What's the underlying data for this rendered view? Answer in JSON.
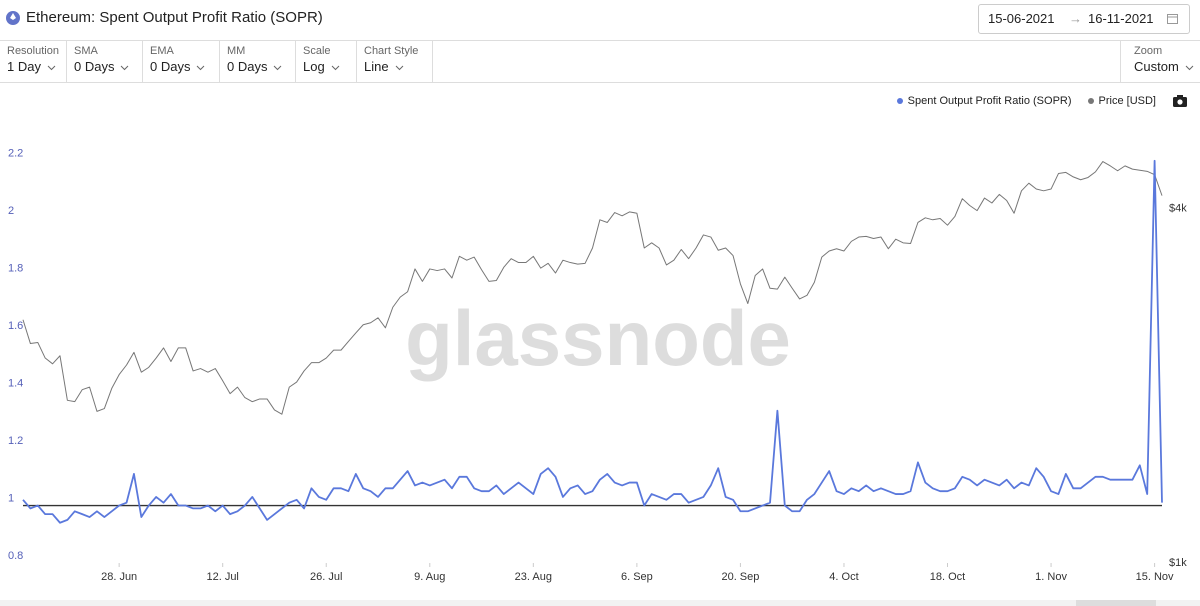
{
  "header": {
    "title": "Ethereum: Spent Output Profit Ratio (SOPR)",
    "date_from": "15-06-2021",
    "date_to": "16-11-2021"
  },
  "controls": [
    {
      "label": "Resolution",
      "value": "1 Day"
    },
    {
      "label": "SMA",
      "value": "0 Days"
    },
    {
      "label": "EMA",
      "value": "0 Days"
    },
    {
      "label": "MM",
      "value": "0 Days"
    },
    {
      "label": "Scale",
      "value": "Log"
    },
    {
      "label": "Chart Style",
      "value": "Line"
    },
    {
      "label": "Zoom",
      "value": "Custom"
    }
  ],
  "watermark": "glassnode",
  "chart_data": {
    "type": "line",
    "x": [
      "2021-06-15",
      "2021-06-16",
      "2021-06-17",
      "2021-06-18",
      "2021-06-19",
      "2021-06-20",
      "2021-06-21",
      "2021-06-22",
      "2021-06-23",
      "2021-06-24",
      "2021-06-25",
      "2021-06-26",
      "2021-06-27",
      "2021-06-28",
      "2021-06-29",
      "2021-06-30",
      "2021-07-01",
      "2021-07-02",
      "2021-07-03",
      "2021-07-04",
      "2021-07-05",
      "2021-07-06",
      "2021-07-07",
      "2021-07-08",
      "2021-07-09",
      "2021-07-10",
      "2021-07-11",
      "2021-07-12",
      "2021-07-13",
      "2021-07-14",
      "2021-07-15",
      "2021-07-16",
      "2021-07-17",
      "2021-07-18",
      "2021-07-19",
      "2021-07-20",
      "2021-07-21",
      "2021-07-22",
      "2021-07-23",
      "2021-07-24",
      "2021-07-25",
      "2021-07-26",
      "2021-07-27",
      "2021-07-28",
      "2021-07-29",
      "2021-07-30",
      "2021-07-31",
      "2021-08-01",
      "2021-08-02",
      "2021-08-03",
      "2021-08-04",
      "2021-08-05",
      "2021-08-06",
      "2021-08-07",
      "2021-08-08",
      "2021-08-09",
      "2021-08-10",
      "2021-08-11",
      "2021-08-12",
      "2021-08-13",
      "2021-08-14",
      "2021-08-15",
      "2021-08-16",
      "2021-08-17",
      "2021-08-18",
      "2021-08-19",
      "2021-08-20",
      "2021-08-21",
      "2021-08-22",
      "2021-08-23",
      "2021-08-24",
      "2021-08-25",
      "2021-08-26",
      "2021-08-27",
      "2021-08-28",
      "2021-08-29",
      "2021-08-30",
      "2021-08-31",
      "2021-09-01",
      "2021-09-02",
      "2021-09-03",
      "2021-09-04",
      "2021-09-05",
      "2021-09-06",
      "2021-09-07",
      "2021-09-08",
      "2021-09-09",
      "2021-09-10",
      "2021-09-11",
      "2021-09-12",
      "2021-09-13",
      "2021-09-14",
      "2021-09-15",
      "2021-09-16",
      "2021-09-17",
      "2021-09-18",
      "2021-09-19",
      "2021-09-20",
      "2021-09-21",
      "2021-09-22",
      "2021-09-23",
      "2021-09-24",
      "2021-09-25",
      "2021-09-26",
      "2021-09-27",
      "2021-09-28",
      "2021-09-29",
      "2021-09-30",
      "2021-10-01",
      "2021-10-02",
      "2021-10-03",
      "2021-10-04",
      "2021-10-05",
      "2021-10-06",
      "2021-10-07",
      "2021-10-08",
      "2021-10-09",
      "2021-10-10",
      "2021-10-11",
      "2021-10-12",
      "2021-10-13",
      "2021-10-14",
      "2021-10-15",
      "2021-10-16",
      "2021-10-17",
      "2021-10-18",
      "2021-10-19",
      "2021-10-20",
      "2021-10-21",
      "2021-10-22",
      "2021-10-23",
      "2021-10-24",
      "2021-10-25",
      "2021-10-26",
      "2021-10-27",
      "2021-10-28",
      "2021-10-29",
      "2021-10-30",
      "2021-10-31",
      "2021-11-01",
      "2021-11-02",
      "2021-11-03",
      "2021-11-04",
      "2021-11-05",
      "2021-11-06",
      "2021-11-07",
      "2021-11-08",
      "2021-11-09",
      "2021-11-10",
      "2021-11-11",
      "2021-11-12",
      "2021-11-13",
      "2021-11-14",
      "2021-11-15",
      "2021-11-16"
    ],
    "xlim": [
      "2021-06-15",
      "2021-11-16"
    ],
    "xticks": [
      {
        "value": "2021-06-28",
        "label": "28. Jun"
      },
      {
        "value": "2021-07-12",
        "label": "12. Jul"
      },
      {
        "value": "2021-07-26",
        "label": "26. Jul"
      },
      {
        "value": "2021-08-09",
        "label": "9. Aug"
      },
      {
        "value": "2021-08-23",
        "label": "23. Aug"
      },
      {
        "value": "2021-09-06",
        "label": "6. Sep"
      },
      {
        "value": "2021-09-20",
        "label": "20. Sep"
      },
      {
        "value": "2021-10-04",
        "label": "4. Oct"
      },
      {
        "value": "2021-10-18",
        "label": "18. Oct"
      },
      {
        "value": "2021-11-01",
        "label": "1. Nov"
      },
      {
        "value": "2021-11-15",
        "label": "15. Nov"
      }
    ],
    "ylim": [
      0.8,
      2.3
    ],
    "yticks": [
      0.8,
      1,
      1.2,
      1.4,
      1.6,
      1.8,
      2,
      2.2
    ],
    "y2lim": [
      1000,
      5400
    ],
    "y2log": true,
    "y2ticks": [
      {
        "value": 1000,
        "label": "$1k"
      },
      {
        "value": 4000,
        "label": "$4k"
      }
    ],
    "grid": false,
    "reference_line": 1,
    "legend": "top-right",
    "series": [
      {
        "name": "Spent Output Profit Ratio (SOPR)",
        "color": "#5a78dc",
        "values": [
          1.02,
          0.99,
          1.0,
          0.97,
          0.97,
          0.94,
          0.95,
          0.98,
          0.97,
          0.96,
          0.98,
          0.96,
          0.98,
          1.0,
          1.01,
          1.11,
          0.96,
          1.0,
          1.03,
          1.01,
          1.04,
          1.0,
          1.0,
          0.99,
          0.99,
          1.0,
          0.98,
          1.0,
          0.97,
          0.98,
          1.0,
          1.03,
          0.99,
          0.95,
          0.97,
          0.99,
          1.01,
          1.02,
          0.99,
          1.06,
          1.03,
          1.02,
          1.06,
          1.06,
          1.05,
          1.11,
          1.06,
          1.05,
          1.03,
          1.06,
          1.06,
          1.09,
          1.12,
          1.07,
          1.08,
          1.07,
          1.08,
          1.09,
          1.06,
          1.1,
          1.1,
          1.06,
          1.05,
          1.05,
          1.07,
          1.04,
          1.06,
          1.08,
          1.06,
          1.04,
          1.11,
          1.13,
          1.1,
          1.03,
          1.06,
          1.07,
          1.04,
          1.05,
          1.09,
          1.11,
          1.08,
          1.07,
          1.08,
          1.08,
          1.0,
          1.04,
          1.03,
          1.02,
          1.04,
          1.04,
          1.01,
          1.02,
          1.03,
          1.07,
          1.13,
          1.03,
          1.02,
          0.98,
          0.98,
          0.99,
          1.0,
          1.01,
          1.33,
          1.0,
          0.98,
          0.98,
          1.02,
          1.04,
          1.08,
          1.12,
          1.05,
          1.04,
          1.06,
          1.05,
          1.07,
          1.05,
          1.06,
          1.05,
          1.04,
          1.04,
          1.05,
          1.15,
          1.08,
          1.06,
          1.05,
          1.05,
          1.06,
          1.1,
          1.09,
          1.07,
          1.09,
          1.08,
          1.07,
          1.09,
          1.06,
          1.08,
          1.07,
          1.13,
          1.1,
          1.05,
          1.04,
          1.11,
          1.06,
          1.06,
          1.08,
          1.1,
          1.1,
          1.09,
          1.09,
          1.09,
          1.09,
          1.14,
          1.04,
          2.2,
          1.01
        ]
      },
      {
        "name": "Price [USD]",
        "color": "#777777",
        "axis": "y2",
        "values": [
          2590,
          2360,
          2370,
          2230,
          2180,
          2250,
          1890,
          1880,
          1970,
          1990,
          1810,
          1830,
          1980,
          2090,
          2170,
          2280,
          2110,
          2150,
          2230,
          2320,
          2200,
          2320,
          2320,
          2120,
          2140,
          2110,
          2140,
          2040,
          1940,
          1990,
          1910,
          1880,
          1900,
          1900,
          1820,
          1790,
          1990,
          2030,
          2120,
          2190,
          2190,
          2230,
          2300,
          2300,
          2380,
          2460,
          2540,
          2560,
          2610,
          2510,
          2720,
          2830,
          2890,
          3160,
          3010,
          3160,
          3140,
          3160,
          3050,
          3320,
          3270,
          3310,
          3150,
          3010,
          3020,
          3180,
          3290,
          3240,
          3240,
          3320,
          3170,
          3230,
          3110,
          3270,
          3240,
          3220,
          3230,
          3430,
          3830,
          3790,
          3940,
          3890,
          3950,
          3930,
          3430,
          3500,
          3430,
          3210,
          3270,
          3410,
          3290,
          3430,
          3610,
          3580,
          3400,
          3430,
          3330,
          2980,
          2760,
          3080,
          3160,
          2930,
          2920,
          3060,
          2930,
          2810,
          2850,
          3000,
          3310,
          3390,
          3420,
          3390,
          3520,
          3580,
          3590,
          3560,
          3580,
          3420,
          3550,
          3500,
          3490,
          3790,
          3860,
          3830,
          3850,
          3750,
          3880,
          4160,
          4050,
          3970,
          4170,
          4090,
          4230,
          4130,
          3930,
          4290,
          4420,
          4320,
          4290,
          4320,
          4590,
          4610,
          4530,
          4480,
          4520,
          4620,
          4810,
          4730,
          4640,
          4730,
          4670,
          4650,
          4630,
          4570,
          4210
        ]
      }
    ]
  }
}
